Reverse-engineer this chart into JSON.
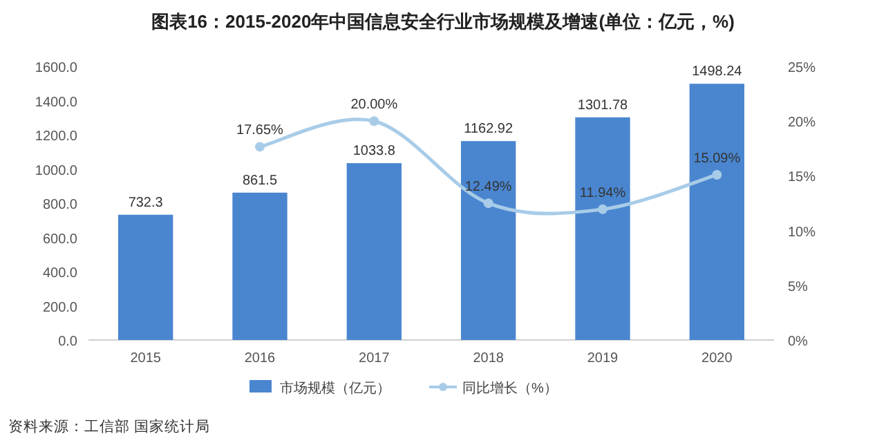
{
  "chart_data": {
    "type": "bar",
    "title": "图表16：2015-2020年中国信息安全行业市场规模及增速(单位：亿元，%)",
    "categories": [
      "2015",
      "2016",
      "2017",
      "2018",
      "2019",
      "2020"
    ],
    "series": [
      {
        "name": "市场规模（亿元）",
        "color": "#4a86d0",
        "values": [
          732.3,
          861.5,
          1033.8,
          1162.92,
          1301.78,
          1498.24
        ],
        "value_labels": [
          "732.3",
          "861.5",
          "1033.8",
          "1162.92",
          "1301.78",
          "1498.24"
        ]
      },
      {
        "name": "同比增长（%）",
        "type": "line",
        "axis": "y2",
        "color": "#a8cce8",
        "marker": "circle",
        "values": [
          null,
          17.65,
          20.0,
          12.49,
          11.94,
          15.09
        ],
        "value_labels": [
          null,
          "17.65%",
          "20.00%",
          "12.49%",
          "11.94%",
          "15.09%"
        ]
      }
    ],
    "ylim": [
      0,
      1600
    ],
    "yticks": [
      {
        "value": 0,
        "label": "0.0"
      },
      {
        "value": 200,
        "label": "200.0"
      },
      {
        "value": 400,
        "label": "400.0"
      },
      {
        "value": 600,
        "label": "600.0"
      },
      {
        "value": 800,
        "label": "800.0"
      },
      {
        "value": 1000,
        "label": "1000.0"
      },
      {
        "value": 1200,
        "label": "1200.0"
      },
      {
        "value": 1400,
        "label": "1400.0"
      },
      {
        "value": 1600,
        "label": "1600.0"
      }
    ],
    "y2lim": [
      0,
      25
    ],
    "y2ticks": [
      {
        "value": 0,
        "label": "0%"
      },
      {
        "value": 5,
        "label": "5%"
      },
      {
        "value": 10,
        "label": "10%"
      },
      {
        "value": 15,
        "label": "15%"
      },
      {
        "value": 20,
        "label": "20%"
      },
      {
        "value": 25,
        "label": "25%"
      }
    ],
    "legend": "bottom",
    "annotations": [
      "资料来源：工信部 国家统计局"
    ]
  }
}
